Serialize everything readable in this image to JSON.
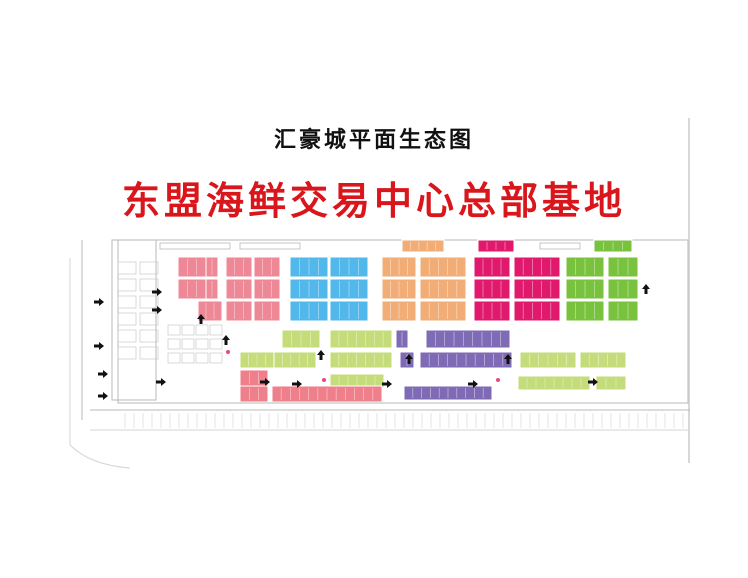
{
  "header": {
    "subtitle": "汇豪城平面生态图",
    "title": "东盟海鲜交易中心总部基地"
  },
  "colors": {
    "title_red": "#d8161b",
    "zone_pink": "#ee8896",
    "zone_blue": "#52b7ea",
    "zone_orange": "#f2ad76",
    "zone_magenta": "#e0196d",
    "zone_green": "#78c23e",
    "zone_lightgreen": "#c4dc7a",
    "zone_purple": "#7f6bb5",
    "zone_rose": "#ef7f8a",
    "arrow": "#111111",
    "line": "#b9b9b9"
  },
  "legend_icons": [
    "arrow-right-icon",
    "arrow-up-icon",
    "entrance-dot-icon"
  ]
}
